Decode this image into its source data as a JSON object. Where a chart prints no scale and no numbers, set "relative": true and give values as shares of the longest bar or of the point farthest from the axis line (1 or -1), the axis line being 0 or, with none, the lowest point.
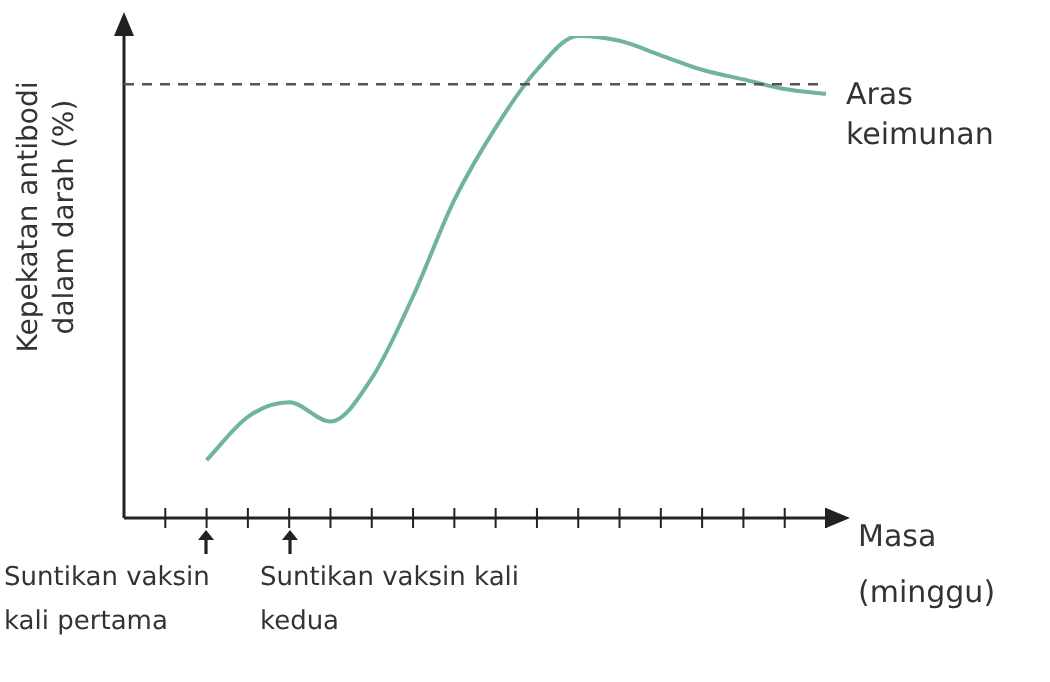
{
  "chart_data": {
    "type": "line",
    "relative": true,
    "ylabel": "Kepekatan antibodi dalam darah (%)",
    "xlabel": "Masa (minggu)",
    "categories": [
      null,
      null,
      null,
      null,
      null,
      null,
      null,
      null,
      null,
      null,
      null,
      null,
      null,
      null,
      null,
      null,
      null,
      null
    ],
    "series": [
      {
        "color": "#6fb3a0",
        "values": [
          null,
          null,
          0.12,
          0.21,
          0.24,
          0.2,
          0.29,
          0.46,
          0.66,
          0.81,
          0.93,
          1.0,
          0.99,
          0.96,
          0.93,
          0.91,
          0.89,
          0.88
        ]
      }
    ],
    "ref_lines": [
      {
        "axis": "y",
        "value": 0.9,
        "label": "Aras keimunan",
        "line_style": "dashed",
        "color": "#555555"
      }
    ],
    "annotations": [
      "Suntikan vaksin kali pertama",
      "Suntikan vaksin kali kedua"
    ],
    "legend": false,
    "tick_labels": false,
    "marker": "none",
    "line_style": "solid"
  }
}
